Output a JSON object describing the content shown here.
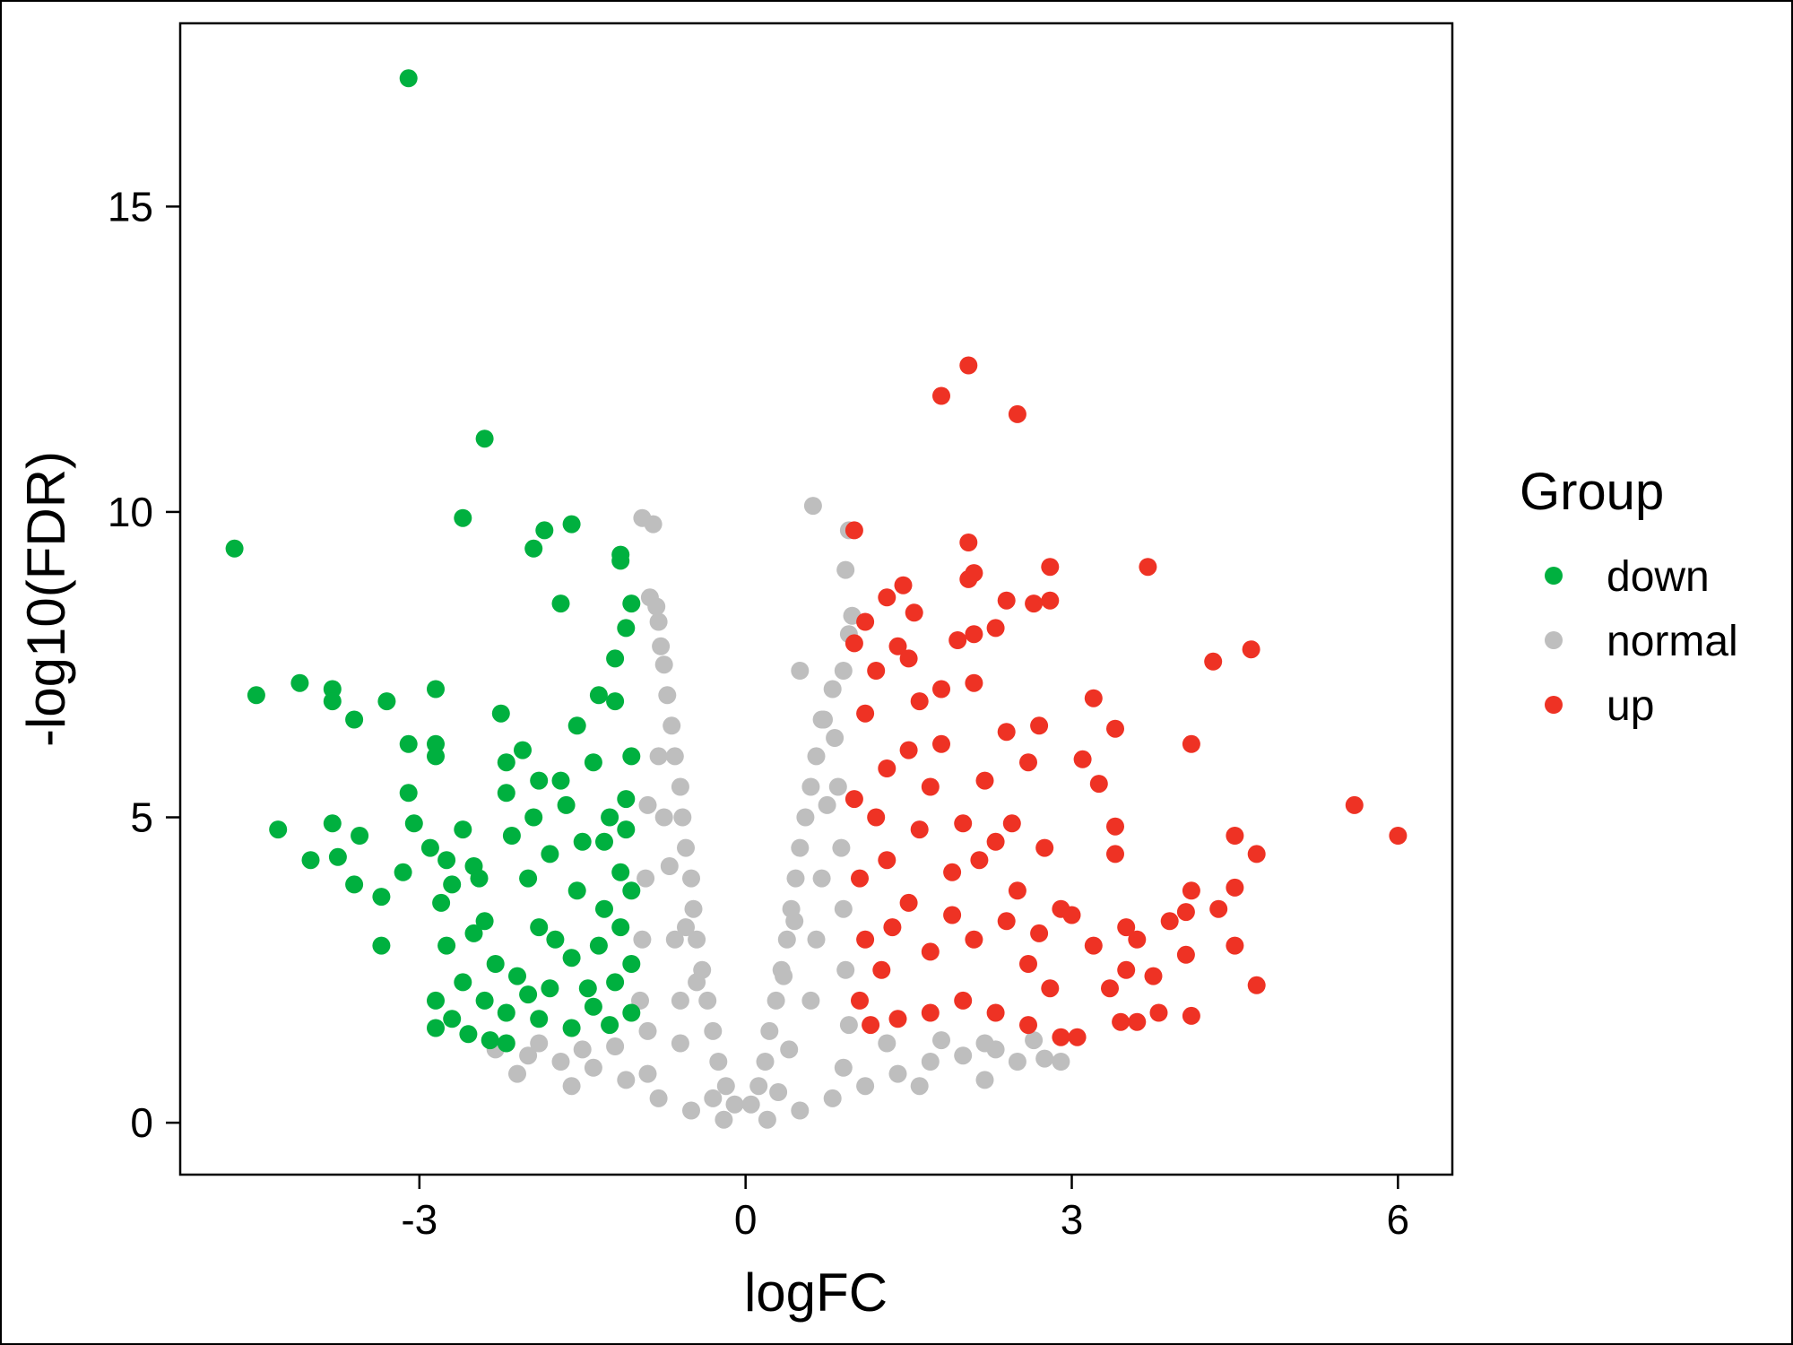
{
  "chart_data": {
    "type": "scatter",
    "title": "",
    "xlabel": "logFC",
    "ylabel": "-log10(FDR)",
    "xlim": [
      -5.2,
      6.5
    ],
    "ylim": [
      -0.85,
      18.0
    ],
    "xticks": [
      -3,
      0,
      3,
      6
    ],
    "yticks": [
      0,
      5,
      10,
      15
    ],
    "xtick_labels": [
      "-3",
      "0",
      "3",
      "6"
    ],
    "ytick_labels": [
      "0",
      "5",
      "10",
      "15"
    ],
    "grid": false,
    "legend": {
      "title": "Group",
      "position": "right",
      "entries": [
        {
          "label": "down",
          "color": "#00b03f"
        },
        {
          "label": "normal",
          "color": "#bebebe"
        },
        {
          "label": "up",
          "color": "#ee3224"
        }
      ]
    },
    "series": [
      {
        "name": "down",
        "color": "#00b03f",
        "points": [
          [
            -3.1,
            17.1
          ],
          [
            -2.4,
            11.2
          ],
          [
            -2.6,
            9.9
          ],
          [
            -4.7,
            9.4
          ],
          [
            -1.6,
            9.8
          ],
          [
            -1.85,
            9.7
          ],
          [
            -1.95,
            9.4
          ],
          [
            -1.15,
            9.3
          ],
          [
            -1.15,
            9.2
          ],
          [
            -1.7,
            8.5
          ],
          [
            -1.05,
            8.5
          ],
          [
            -4.5,
            7.0
          ],
          [
            -4.1,
            7.2
          ],
          [
            -3.8,
            7.1
          ],
          [
            -3.8,
            6.9
          ],
          [
            -3.6,
            6.6
          ],
          [
            -3.3,
            6.9
          ],
          [
            -2.85,
            7.1
          ],
          [
            -2.25,
            6.7
          ],
          [
            -3.1,
            6.2
          ],
          [
            -2.85,
            6.2
          ],
          [
            -2.85,
            6.0
          ],
          [
            -3.1,
            5.4
          ],
          [
            -1.1,
            8.1
          ],
          [
            -1.2,
            7.6
          ],
          [
            -1.35,
            7.0
          ],
          [
            -1.55,
            6.5
          ],
          [
            -4.3,
            4.8
          ],
          [
            -4.0,
            4.3
          ],
          [
            -3.8,
            4.9
          ],
          [
            -3.75,
            4.35
          ],
          [
            -3.55,
            4.7
          ],
          [
            -3.6,
            3.9
          ],
          [
            -3.35,
            3.7
          ],
          [
            -3.35,
            2.9
          ],
          [
            -3.15,
            4.1
          ],
          [
            -3.05,
            4.9
          ],
          [
            -2.9,
            4.5
          ],
          [
            -2.8,
            3.6
          ],
          [
            -2.75,
            2.9
          ],
          [
            -2.85,
            2.0
          ],
          [
            -2.85,
            1.55
          ],
          [
            -2.6,
            4.8
          ],
          [
            -2.5,
            4.2
          ],
          [
            -2.4,
            3.3
          ],
          [
            -2.2,
            5.4
          ],
          [
            -2.05,
            6.1
          ],
          [
            -1.95,
            5.0
          ],
          [
            -1.8,
            4.4
          ],
          [
            -1.7,
            5.6
          ],
          [
            -1.55,
            3.8
          ],
          [
            -1.4,
            5.9
          ],
          [
            -1.3,
            4.6
          ],
          [
            -1.2,
            6.9
          ],
          [
            -1.1,
            5.3
          ],
          [
            -2.7,
            1.7
          ],
          [
            -2.55,
            1.45
          ],
          [
            -2.35,
            1.35
          ],
          [
            -2.2,
            1.3
          ],
          [
            -2.0,
            2.1
          ],
          [
            -2.3,
            2.6
          ],
          [
            -2.5,
            3.1
          ],
          [
            -1.9,
            3.2
          ],
          [
            -1.6,
            2.7
          ],
          [
            -1.45,
            2.2
          ],
          [
            -1.3,
            3.5
          ],
          [
            -1.15,
            4.1
          ],
          [
            -1.05,
            2.6
          ],
          [
            -1.05,
            1.8
          ],
          [
            -1.25,
            1.6
          ],
          [
            -1.6,
            1.55
          ],
          [
            -1.9,
            1.7
          ],
          [
            -2.1,
            2.4
          ],
          [
            -2.4,
            2.0
          ],
          [
            -2.6,
            2.3
          ],
          [
            -2.7,
            3.9
          ],
          [
            -2.0,
            4.0
          ],
          [
            -1.75,
            3.0
          ],
          [
            -1.35,
            2.9
          ],
          [
            -1.15,
            3.2
          ],
          [
            -1.5,
            4.6
          ],
          [
            -1.25,
            5.0
          ],
          [
            -2.15,
            4.7
          ],
          [
            -2.45,
            4.0
          ],
          [
            -2.75,
            4.3
          ],
          [
            -1.05,
            6.0
          ],
          [
            -1.1,
            4.8
          ],
          [
            -1.05,
            3.8
          ],
          [
            -1.8,
            2.2
          ],
          [
            -2.2,
            1.8
          ],
          [
            -1.4,
            1.9
          ],
          [
            -1.2,
            2.3
          ],
          [
            -1.65,
            5.2
          ],
          [
            -1.9,
            5.6
          ],
          [
            -2.2,
            5.9
          ]
        ]
      },
      {
        "name": "normal",
        "color": "#bebebe",
        "points": [
          [
            -0.95,
            9.9
          ],
          [
            -0.85,
            9.8
          ],
          [
            0.62,
            10.1
          ],
          [
            0.95,
            9.7
          ],
          [
            0.92,
            9.05
          ],
          [
            -0.88,
            8.6
          ],
          [
            -0.82,
            8.45
          ],
          [
            -0.8,
            8.2
          ],
          [
            -0.78,
            7.8
          ],
          [
            -0.75,
            7.5
          ],
          [
            -0.72,
            7.0
          ],
          [
            -0.68,
            6.5
          ],
          [
            -0.65,
            6.0
          ],
          [
            -0.6,
            5.5
          ],
          [
            -0.58,
            5.0
          ],
          [
            -0.55,
            4.5
          ],
          [
            -0.5,
            4.0
          ],
          [
            -0.48,
            3.5
          ],
          [
            -0.45,
            3.0
          ],
          [
            -0.4,
            2.5
          ],
          [
            -0.35,
            2.0
          ],
          [
            -0.3,
            1.5
          ],
          [
            -0.25,
            1.0
          ],
          [
            -0.18,
            0.6
          ],
          [
            -0.1,
            0.3
          ],
          [
            0.05,
            0.3
          ],
          [
            0.12,
            0.6
          ],
          [
            0.18,
            1.0
          ],
          [
            0.22,
            1.5
          ],
          [
            0.28,
            2.0
          ],
          [
            0.33,
            2.5
          ],
          [
            0.38,
            3.0
          ],
          [
            0.42,
            3.5
          ],
          [
            0.46,
            4.0
          ],
          [
            0.5,
            4.5
          ],
          [
            0.55,
            5.0
          ],
          [
            0.6,
            5.5
          ],
          [
            0.65,
            6.0
          ],
          [
            0.72,
            6.6
          ],
          [
            0.8,
            7.1
          ],
          [
            0.9,
            7.4
          ],
          [
            0.95,
            8.0
          ],
          [
            0.98,
            8.3
          ],
          [
            0.5,
            7.4
          ],
          [
            0.7,
            6.6
          ],
          [
            -0.9,
            5.2
          ],
          [
            -0.92,
            4.0
          ],
          [
            -0.95,
            3.0
          ],
          [
            -0.97,
            2.0
          ],
          [
            -0.9,
            1.5
          ],
          [
            -0.7,
            4.2
          ],
          [
            -0.65,
            3.0
          ],
          [
            -0.6,
            2.0
          ],
          [
            -0.8,
            6.0
          ],
          [
            -0.75,
            5.0
          ],
          [
            0.85,
            5.5
          ],
          [
            0.88,
            4.5
          ],
          [
            0.9,
            3.5
          ],
          [
            0.92,
            2.5
          ],
          [
            0.95,
            1.6
          ],
          [
            0.7,
            4.0
          ],
          [
            0.65,
            3.0
          ],
          [
            0.6,
            2.0
          ],
          [
            0.82,
            6.3
          ],
          [
            0.75,
            5.2
          ],
          [
            -2.3,
            1.2
          ],
          [
            -2.0,
            1.1
          ],
          [
            -1.7,
            1.0
          ],
          [
            -1.4,
            0.9
          ],
          [
            -1.1,
            0.7
          ],
          [
            -0.8,
            0.4
          ],
          [
            -0.5,
            0.2
          ],
          [
            -0.2,
            0.05
          ],
          [
            0.2,
            0.05
          ],
          [
            0.5,
            0.2
          ],
          [
            0.8,
            0.4
          ],
          [
            1.1,
            0.6
          ],
          [
            1.4,
            0.8
          ],
          [
            1.7,
            1.0
          ],
          [
            2.0,
            1.1
          ],
          [
            2.3,
            1.2
          ],
          [
            2.5,
            1.0
          ],
          [
            2.65,
            1.35
          ],
          [
            2.75,
            1.05
          ],
          [
            2.9,
            1.0
          ],
          [
            -1.9,
            1.3
          ],
          [
            -1.5,
            1.2
          ],
          [
            -1.2,
            1.25
          ],
          [
            1.3,
            1.3
          ],
          [
            1.8,
            1.35
          ],
          [
            2.2,
            1.3
          ],
          [
            -0.9,
            0.8
          ],
          [
            0.9,
            0.9
          ],
          [
            -0.3,
            0.4
          ],
          [
            0.3,
            0.5
          ],
          [
            -2.1,
            0.8
          ],
          [
            -1.6,
            0.6
          ],
          [
            1.6,
            0.6
          ],
          [
            2.2,
            0.7
          ],
          [
            -0.6,
            1.3
          ],
          [
            0.4,
            1.2
          ],
          [
            -0.45,
            2.3
          ],
          [
            0.35,
            2.4
          ],
          [
            -0.55,
            3.2
          ],
          [
            0.45,
            3.3
          ]
        ]
      },
      {
        "name": "up",
        "color": "#ee3224",
        "points": [
          [
            2.05,
            12.4
          ],
          [
            1.8,
            11.9
          ],
          [
            2.5,
            11.6
          ],
          [
            1.0,
            9.7
          ],
          [
            2.05,
            9.5
          ],
          [
            2.8,
            9.1
          ],
          [
            3.7,
            9.1
          ],
          [
            2.1,
            9.0
          ],
          [
            2.05,
            8.9
          ],
          [
            1.45,
            8.8
          ],
          [
            2.4,
            8.55
          ],
          [
            2.65,
            8.5
          ],
          [
            2.8,
            8.55
          ],
          [
            1.3,
            8.6
          ],
          [
            1.55,
            8.35
          ],
          [
            1.1,
            8.2
          ],
          [
            2.3,
            8.1
          ],
          [
            2.1,
            8.0
          ],
          [
            1.95,
            7.9
          ],
          [
            1.0,
            7.85
          ],
          [
            1.4,
            7.8
          ],
          [
            4.65,
            7.75
          ],
          [
            4.3,
            7.55
          ],
          [
            1.5,
            7.6
          ],
          [
            1.2,
            7.4
          ],
          [
            1.8,
            7.1
          ],
          [
            1.6,
            6.9
          ],
          [
            3.2,
            6.95
          ],
          [
            2.1,
            7.2
          ],
          [
            2.7,
            6.5
          ],
          [
            3.4,
            6.45
          ],
          [
            2.4,
            6.4
          ],
          [
            4.1,
            6.2
          ],
          [
            3.1,
            5.95
          ],
          [
            2.6,
            5.9
          ],
          [
            3.25,
            5.55
          ],
          [
            5.6,
            5.2
          ],
          [
            6.0,
            4.7
          ],
          [
            4.5,
            4.7
          ],
          [
            4.7,
            4.4
          ],
          [
            3.4,
            4.85
          ],
          [
            3.4,
            4.4
          ],
          [
            4.5,
            3.85
          ],
          [
            4.1,
            3.8
          ],
          [
            4.35,
            3.5
          ],
          [
            4.05,
            3.45
          ],
          [
            3.9,
            3.3
          ],
          [
            4.05,
            2.75
          ],
          [
            4.5,
            2.9
          ],
          [
            4.7,
            2.25
          ],
          [
            4.1,
            1.75
          ],
          [
            3.8,
            1.8
          ],
          [
            3.6,
            1.65
          ],
          [
            3.45,
            1.65
          ],
          [
            3.05,
            1.4
          ],
          [
            2.9,
            1.4
          ],
          [
            3.75,
            2.4
          ],
          [
            3.5,
            2.5
          ],
          [
            3.35,
            2.2
          ],
          [
            3.2,
            2.9
          ],
          [
            3.5,
            3.2
          ],
          [
            3.6,
            3.0
          ],
          [
            2.9,
            3.5
          ],
          [
            3.0,
            3.4
          ],
          [
            2.6,
            2.6
          ],
          [
            2.5,
            3.8
          ],
          [
            2.3,
            4.6
          ],
          [
            2.2,
            5.6
          ],
          [
            2.0,
            4.9
          ],
          [
            1.8,
            6.2
          ],
          [
            1.7,
            5.5
          ],
          [
            1.5,
            6.1
          ],
          [
            1.3,
            5.8
          ],
          [
            1.1,
            6.7
          ],
          [
            1.2,
            5.0
          ],
          [
            1.05,
            4.0
          ],
          [
            1.1,
            3.0
          ],
          [
            1.05,
            2.0
          ],
          [
            1.15,
            1.6
          ],
          [
            1.4,
            1.7
          ],
          [
            1.7,
            1.8
          ],
          [
            2.0,
            2.0
          ],
          [
            2.3,
            1.8
          ],
          [
            2.6,
            1.6
          ],
          [
            2.8,
            2.2
          ],
          [
            1.3,
            4.3
          ],
          [
            1.5,
            3.6
          ],
          [
            1.7,
            2.8
          ],
          [
            1.9,
            3.4
          ],
          [
            2.1,
            3.0
          ],
          [
            2.4,
            3.3
          ],
          [
            2.7,
            3.1
          ],
          [
            1.25,
            2.5
          ],
          [
            1.6,
            4.8
          ],
          [
            1.9,
            4.1
          ],
          [
            2.15,
            4.3
          ],
          [
            2.45,
            4.9
          ],
          [
            2.75,
            4.5
          ],
          [
            1.35,
            3.2
          ],
          [
            1.0,
            5.3
          ]
        ]
      }
    ]
  }
}
